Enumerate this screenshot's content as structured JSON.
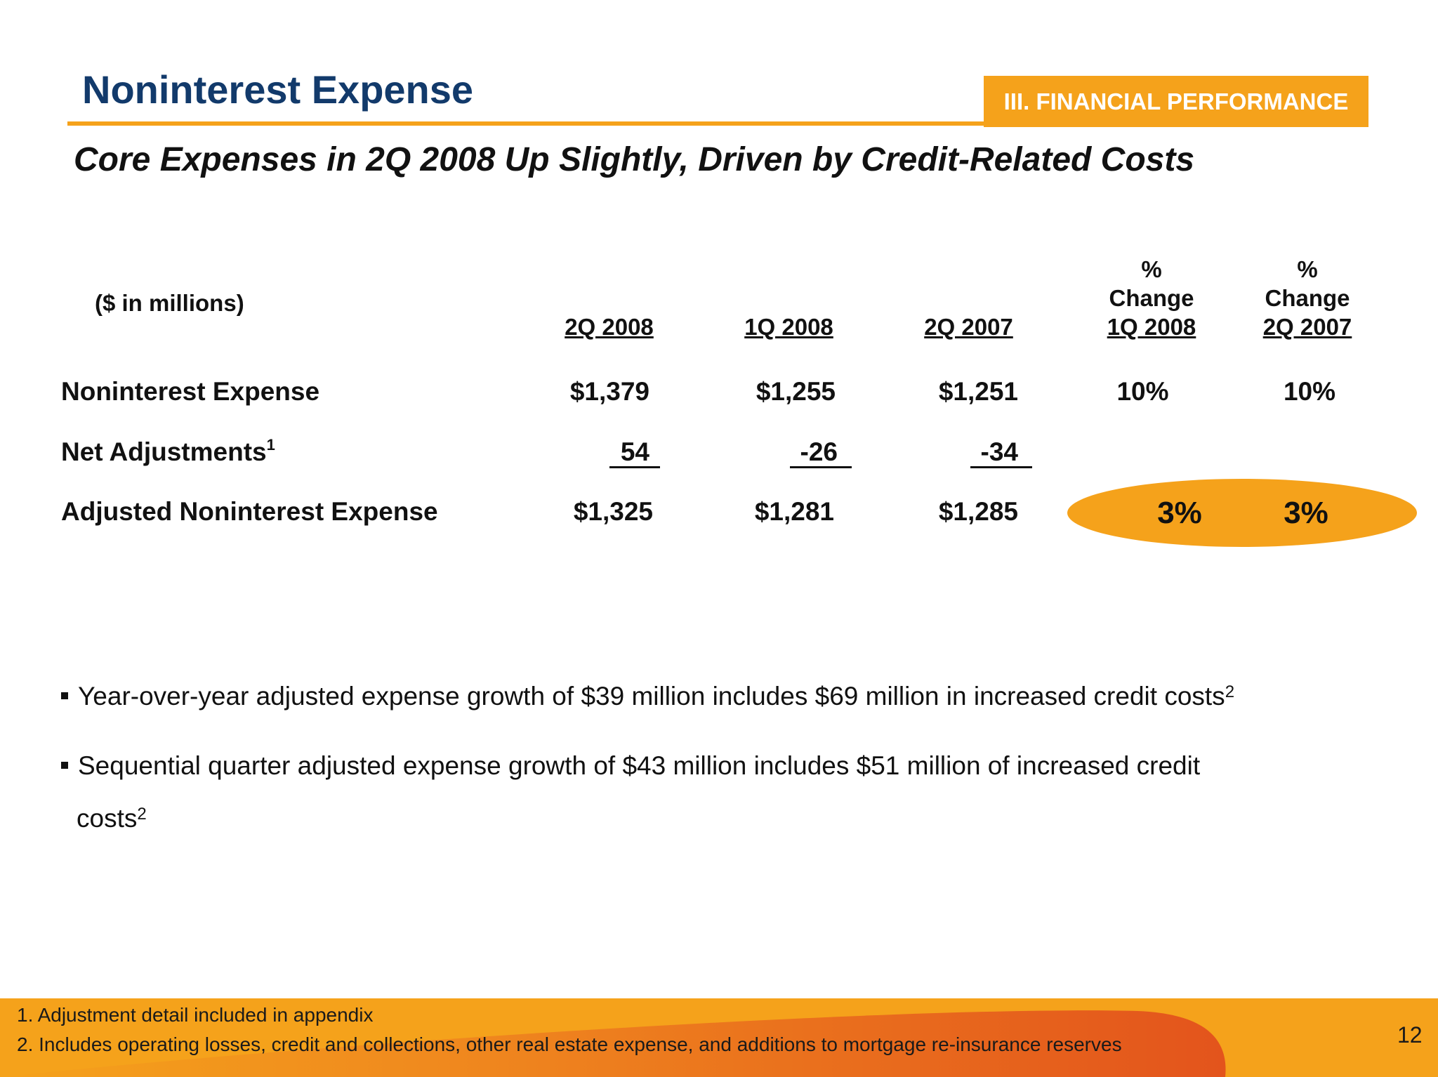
{
  "header": {
    "title": "Noninterest Expense",
    "section": "III. FINANCIAL PERFORMANCE",
    "subtitle": "Core Expenses in 2Q 2008 Up Slightly, Driven by Credit-Related Costs"
  },
  "table": {
    "units": "($ in millions)",
    "columns": [
      {
        "top": "",
        "mid": "",
        "bottom": "2Q 2008"
      },
      {
        "top": "",
        "mid": "",
        "bottom": "1Q 2008"
      },
      {
        "top": "",
        "mid": "",
        "bottom": "2Q 2007"
      },
      {
        "top": "%",
        "mid": "Change",
        "bottom": "1Q 2008"
      },
      {
        "top": "%",
        "mid": "Change",
        "bottom": "2Q 2007"
      }
    ],
    "rows": [
      {
        "label": "Noninterest Expense",
        "sup": "",
        "values": [
          "$1,379",
          "$1,255",
          "$1,251",
          "10%",
          "10%"
        ]
      },
      {
        "label": "Net Adjustments",
        "sup": "1",
        "values": [
          "54",
          "-26",
          "-34",
          "",
          ""
        ]
      },
      {
        "label": "Adjusted Noninterest Expense",
        "sup": "",
        "values": [
          "$1,325",
          "$1,281",
          "$1,285",
          "3%",
          "3%"
        ]
      }
    ]
  },
  "bullets": [
    {
      "text": "Year-over-year adjusted expense growth of $39 million includes $69 million in increased credit costs",
      "sup": "2",
      "cont": ""
    },
    {
      "text": "Sequential quarter adjusted expense growth of $43 million includes $51 million of increased credit",
      "sup": "",
      "cont": "costs",
      "cont_sup": "2"
    }
  ],
  "footer": {
    "notes": [
      "1. Adjustment detail included in appendix",
      "2. Includes operating losses, credit and collections, other real estate expense, and additions to mortgage re-insurance reserves"
    ],
    "page": "12"
  },
  "colors": {
    "accent": "#f5a21b",
    "title": "#123a6b",
    "footer_dark": "#e3541c"
  }
}
